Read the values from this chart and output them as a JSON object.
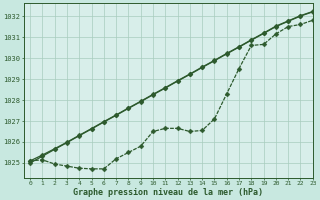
{
  "title": "Graphe pression niveau de la mer (hPa)",
  "bg_color": "#c8e8e0",
  "plot_bg_color": "#d8eeea",
  "line_color": "#2d5a2d",
  "grid_color": "#a8ccbe",
  "xlim": [
    -0.5,
    23
  ],
  "ylim": [
    1024.3,
    1032.6
  ],
  "yticks": [
    1025,
    1026,
    1027,
    1028,
    1029,
    1030,
    1031,
    1032
  ],
  "xticks": [
    0,
    1,
    2,
    3,
    4,
    5,
    6,
    7,
    8,
    9,
    10,
    11,
    12,
    13,
    14,
    15,
    16,
    17,
    18,
    19,
    20,
    21,
    22,
    23
  ],
  "series_linear1": [
    1025.0,
    1025.32,
    1025.65,
    1025.97,
    1026.3,
    1026.62,
    1026.95,
    1027.27,
    1027.6,
    1027.92,
    1028.25,
    1028.57,
    1028.9,
    1029.22,
    1029.55,
    1029.87,
    1030.2,
    1030.52,
    1030.85,
    1031.17,
    1031.5,
    1031.75,
    1032.0,
    1032.2
  ],
  "series_linear2": [
    1025.1,
    1025.38,
    1025.68,
    1025.99,
    1026.32,
    1026.64,
    1026.97,
    1027.29,
    1027.62,
    1027.94,
    1028.27,
    1028.59,
    1028.92,
    1029.24,
    1029.57,
    1029.89,
    1030.22,
    1030.54,
    1030.87,
    1031.19,
    1031.52,
    1031.77,
    1032.02,
    1032.22
  ],
  "series_wavy": [
    1025.1,
    1025.15,
    1024.95,
    1024.85,
    1024.75,
    1024.72,
    1024.72,
    1025.2,
    1025.5,
    1025.8,
    1026.5,
    1026.65,
    1026.65,
    1026.5,
    1026.55,
    1027.1,
    1028.3,
    1029.5,
    1030.6,
    1030.65,
    1031.15,
    1031.5,
    1031.6,
    1031.8
  ],
  "marker": "D",
  "markersize": 2.5,
  "linewidth": 0.9
}
